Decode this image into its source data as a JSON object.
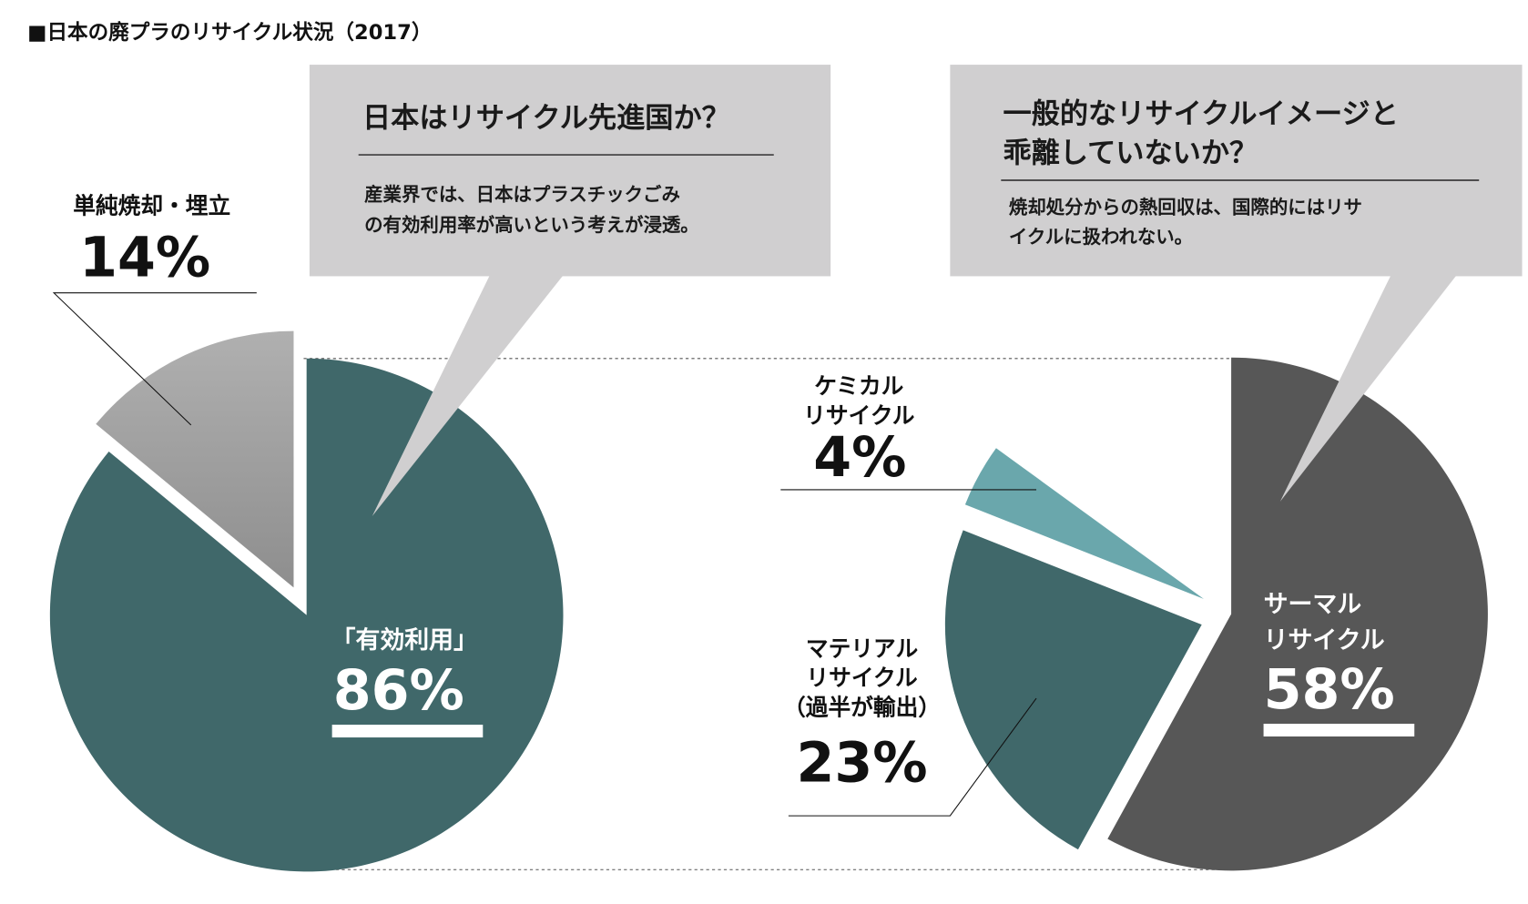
{
  "title": "■日本の廃プラのリサイクル状況（2017）",
  "callouts": [
    {
      "heading_lines": [
        "日本はリサイクル先進国か？"
      ],
      "body_lines": [
        "産業界では、日本はプラスチックごみ",
        "の有効利用率が高いという考えが浸透。"
      ]
    },
    {
      "heading_lines": [
        "一般的なリサイクルイメージと",
        "乖離していないか？"
      ],
      "body_lines": [
        "焼却処分からの熱回収は、国際的にはリサ",
        "イクルに扱われない。"
      ]
    }
  ],
  "chart_data": [
    {
      "type": "pie",
      "title": "",
      "slices": [
        {
          "label": "「有効利用」",
          "label_lines": [
            "「有効利用」"
          ],
          "value": 86,
          "pct_text": "86%",
          "color": "#40686a",
          "exploded": false
        },
        {
          "label": "単純焼却・埋立",
          "label_lines": [
            "単純焼却・埋立"
          ],
          "value": 14,
          "pct_text": "14%",
          "color": "#a3a3a3",
          "exploded": true
        }
      ]
    },
    {
      "type": "pie",
      "title": "",
      "slices": [
        {
          "label": "サーマルリサイクル",
          "label_lines": [
            "サーマル",
            "リサイクル"
          ],
          "value": 58,
          "pct_text": "58%",
          "color": "#575757",
          "exploded": false
        },
        {
          "label": "マテリアルリサイクル（過半が輸出）",
          "label_lines": [
            "マテリアル",
            "リサイクル",
            "（過半が輸出）"
          ],
          "value": 23,
          "pct_text": "23%",
          "color": "#40686a",
          "exploded": true
        },
        {
          "label": "ケミカルリサイクル",
          "label_lines": [
            "ケミカル",
            "リサイクル"
          ],
          "value": 4,
          "pct_text": "4%",
          "color": "#6aa7ac",
          "exploded": true
        }
      ]
    }
  ]
}
